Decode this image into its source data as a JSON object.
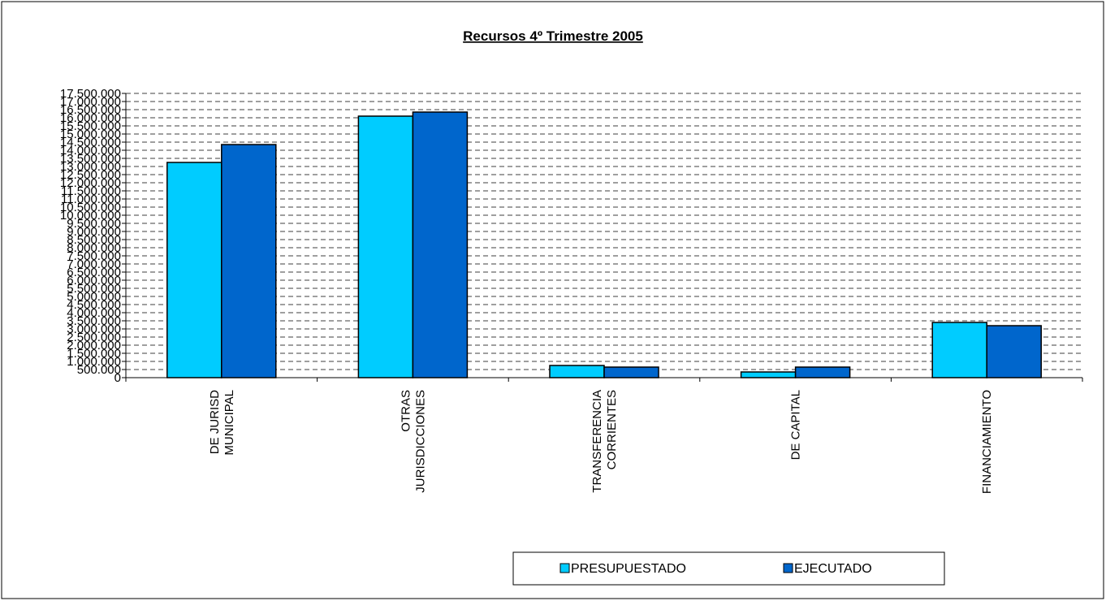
{
  "chart_data": {
    "type": "bar",
    "title": "Recursos 4º Trimestre 2005",
    "categories": [
      "DE JURISD\nMUNICIPAL",
      "OTRAS\nJURISDICCIONES",
      "TRANSFERENCIA\nCORRIENTES",
      "DE CAPITAL",
      "FINANCIAMIENTO"
    ],
    "series": [
      {
        "name": "PRESUPUESTADO",
        "color": "#00ccff",
        "values": [
          13250000,
          16100000,
          750000,
          350000,
          3400000
        ]
      },
      {
        "name": "EJECUTADO",
        "color": "#0066cc",
        "values": [
          14350000,
          16350000,
          650000,
          650000,
          3200000
        ]
      }
    ],
    "ylim": [
      0,
      17500000
    ],
    "yticks": [
      0,
      {
        "value": 500000,
        "label": "500.000"
      },
      {
        "value": 1000000,
        "label": "1.000.000"
      },
      {
        "value": 1500000,
        "label": "1.500.000"
      },
      {
        "value": 2000000,
        "label": "2.000.000"
      },
      {
        "value": 2500000,
        "label": "2.500.000"
      },
      {
        "value": 3000000,
        "label": "3.000.000"
      },
      {
        "value": 3500000,
        "label": "3.500.000"
      },
      {
        "value": 4000000,
        "label": "4.000.000"
      },
      {
        "value": 4500000,
        "label": "4.500.000"
      },
      {
        "value": 5000000,
        "label": "5.000.000"
      },
      {
        "value": 5500000,
        "label": "5.500.000"
      },
      {
        "value": 6000000,
        "label": "6.000.000"
      },
      {
        "value": 6500000,
        "label": "6.500.000"
      },
      {
        "value": 7000000,
        "label": "7.000.000"
      },
      {
        "value": 7500000,
        "label": "7.500.000"
      },
      {
        "value": 8000000,
        "label": "8.000.000"
      },
      {
        "value": 8500000,
        "label": "8.500.000"
      },
      {
        "value": 9000000,
        "label": "9.000.000"
      },
      {
        "value": 9500000,
        "label": "9.500.000"
      },
      {
        "value": 10000000,
        "label": "10.000.000"
      },
      {
        "value": 10500000,
        "label": "10.500.000"
      },
      {
        "value": 11000000,
        "label": "11.000.000"
      },
      {
        "value": 11500000,
        "label": "11.500.000"
      },
      {
        "value": 12000000,
        "label": "12.000.000"
      },
      {
        "value": 12500000,
        "label": "12.500.000"
      },
      {
        "value": 13000000,
        "label": "13.000.000"
      },
      {
        "value": 13500000,
        "label": "13.500.000"
      },
      {
        "value": 14000000,
        "label": "14.000.000"
      },
      {
        "value": 14500000,
        "label": "14.500.000"
      },
      {
        "value": 15000000,
        "label": "15.000.000"
      },
      {
        "value": 15500000,
        "label": "15.500.000"
      },
      {
        "value": 16000000,
        "label": "16.000.000"
      },
      {
        "value": 16500000,
        "label": "16.500.000"
      },
      {
        "value": 17000000,
        "label": "17.000.000"
      },
      {
        "value": 17500000,
        "label": "17.500.000"
      }
    ],
    "grid": true,
    "legend": "bottom"
  }
}
